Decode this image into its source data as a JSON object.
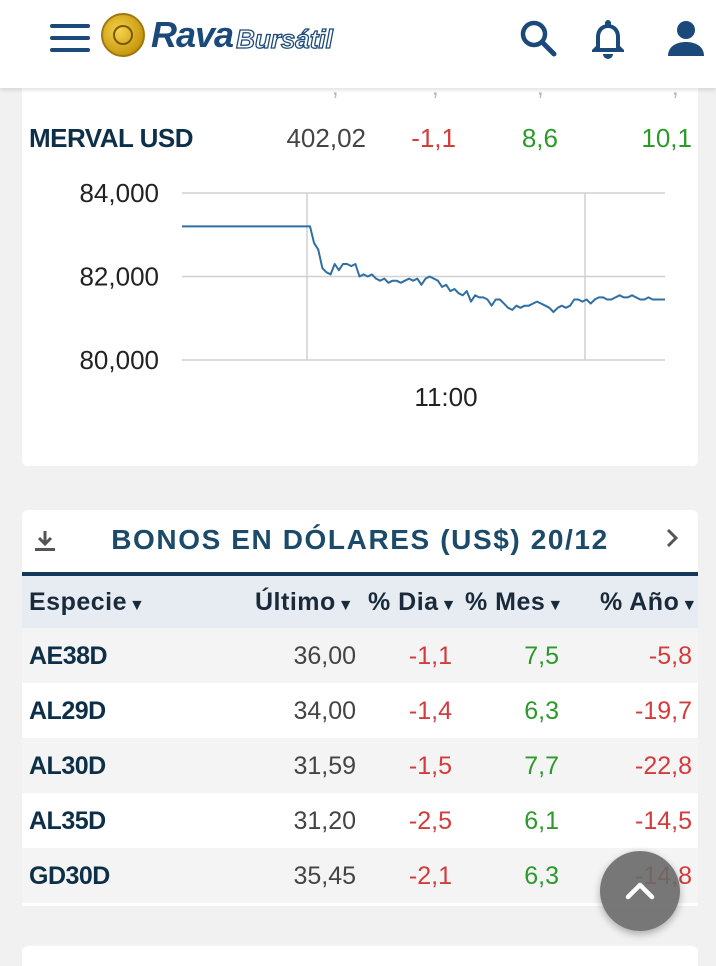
{
  "header": {
    "logo_main": "Rava",
    "logo_sub": "Bursátil"
  },
  "ghost_row": [
    ",",
    ",",
    ",",
    ","
  ],
  "index_row": {
    "name": "MERVAL USD",
    "last": "402,02",
    "day": "-1,1",
    "month": "8,6",
    "year": "10,1"
  },
  "chart_data": {
    "type": "line",
    "title": "",
    "xlabel": "",
    "ylabel": "",
    "ylim": [
      79400,
      84400
    ],
    "yticks": [
      "84,000",
      "82,000",
      "80,000"
    ],
    "ytick_values": [
      84000,
      82000,
      80000
    ],
    "xtick_label": "11:00",
    "grid": true,
    "color": "#2f6fa3",
    "series": [
      {
        "values": [
          83200,
          83200,
          83200,
          83200,
          83200,
          83200,
          83200,
          83200,
          83200,
          83200,
          83200,
          83200,
          83200,
          83200,
          83200,
          83200,
          83200,
          83200,
          83200,
          83200,
          83200,
          83200,
          83200,
          83200,
          83200,
          83200,
          83200,
          83200,
          83200,
          83200,
          83200,
          83200,
          82800,
          82650,
          82200,
          82100,
          82050,
          82300,
          82150,
          82300,
          82300,
          82250,
          82300,
          82000,
          82050,
          82000,
          82050,
          81950,
          81900,
          81950,
          81850,
          81900,
          81900,
          81850,
          81900,
          81950,
          81900,
          81950,
          81800,
          81950,
          82000,
          81950,
          81900,
          81750,
          81800,
          81650,
          81700,
          81600,
          81550,
          81650,
          81400,
          81550,
          81500,
          81500,
          81450,
          81300,
          81450,
          81450,
          81350,
          81250,
          81200,
          81300,
          81250,
          81300,
          81300,
          81350,
          81400,
          81350,
          81300,
          81250,
          81150,
          81250,
          81300,
          81250,
          81300,
          81450,
          81450,
          81400,
          81450,
          81350,
          81450,
          81500,
          81500,
          81450,
          81450,
          81500,
          81550,
          81500,
          81500,
          81550,
          81500,
          81450,
          81450,
          81500,
          81450,
          81450,
          81450,
          81450
        ]
      }
    ]
  },
  "bonds": {
    "title": "BONOS EN DÓLARES (US$) 20/12",
    "columns": [
      "Especie",
      "Último",
      "% Dia",
      "% Mes",
      "% Año"
    ],
    "sort_arrow": "▼",
    "rows": [
      {
        "name": "AE38D",
        "last": "36,00",
        "day": "-1,1",
        "month": "7,5",
        "year": "-5,8"
      },
      {
        "name": "AL29D",
        "last": "34,00",
        "day": "-1,4",
        "month": "6,3",
        "year": "-19,7"
      },
      {
        "name": "AL30D",
        "last": "31,59",
        "day": "-1,5",
        "month": "7,7",
        "year": "-22,8"
      },
      {
        "name": "AL35D",
        "last": "31,20",
        "day": "-2,5",
        "month": "6,1",
        "year": "-14,5"
      },
      {
        "name": "GD30D",
        "last": "35,45",
        "day": "-2,1",
        "month": "6,3",
        "year": "-14,8"
      }
    ]
  },
  "colors": {
    "brand": "#1b4a7a",
    "negative": "#d43b3b",
    "positive": "#2b9a2b",
    "table_header_bg": "#e7ecf2"
  },
  "icons": {
    "menu": "menu-icon",
    "search": "search-icon",
    "notifications": "bell-icon",
    "account": "user-icon",
    "download": "download-icon",
    "next": "chevron-right-icon",
    "scroll_top": "chevron-up-icon"
  }
}
